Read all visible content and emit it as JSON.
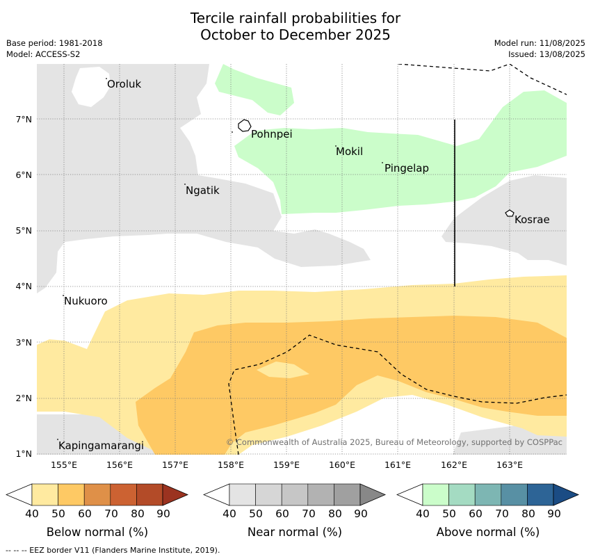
{
  "title_line1": "Tercile rainfall probabilities for",
  "title_line2": "October to December 2025",
  "base_period": "Base period: 1981-2018",
  "model": "Model: ACCESS-S2",
  "model_run": "Model run: 11/08/2025",
  "issued": "Issued: 13/08/2025",
  "y_ticks": [
    "7°N",
    "6°N",
    "5°N",
    "4°N",
    "3°N",
    "2°N",
    "1°N"
  ],
  "x_ticks": [
    "155°E",
    "156°E",
    "157°E",
    "158°E",
    "159°E",
    "160°E",
    "161°E",
    "162°E",
    "163°E"
  ],
  "places": [
    {
      "name": "Oroluk"
    },
    {
      "name": "Pohnpei"
    },
    {
      "name": "Mokil"
    },
    {
      "name": "Pingelap"
    },
    {
      "name": "Ngatik"
    },
    {
      "name": "Kosrae"
    },
    {
      "name": "Nukuoro"
    },
    {
      "name": "Kapingamarangi"
    }
  ],
  "copyright": "© Commonwealth of Australia 2025, Bureau of Meteorology, supported by COSPPac",
  "colorbars": [
    {
      "label": "Below normal (%)",
      "ticks": [
        "40",
        "50",
        "60",
        "70",
        "80",
        "90"
      ],
      "colors": [
        "#ffffff",
        "#ffeaa0",
        "#fec964",
        "#df9048",
        "#cc6232",
        "#b34b28",
        "#9b3320"
      ]
    },
    {
      "label": "Near normal (%)",
      "ticks": [
        "40",
        "50",
        "60",
        "70",
        "80",
        "90"
      ],
      "colors": [
        "#ffffff",
        "#e4e4e4",
        "#d6d6d6",
        "#c6c6c6",
        "#b2b2b2",
        "#a0a0a0",
        "#888888"
      ]
    },
    {
      "label": "Above normal (%)",
      "ticks": [
        "40",
        "50",
        "60",
        "70",
        "80",
        "90"
      ],
      "colors": [
        "#ffffff",
        "#cbfdca",
        "#a4dbc2",
        "#7db6b3",
        "#5890a4",
        "#2d6496",
        "#1b4c84"
      ]
    }
  ],
  "footer": "--  --  -- EEZ border V11 (Flanders Marine Institute, 2019)."
}
